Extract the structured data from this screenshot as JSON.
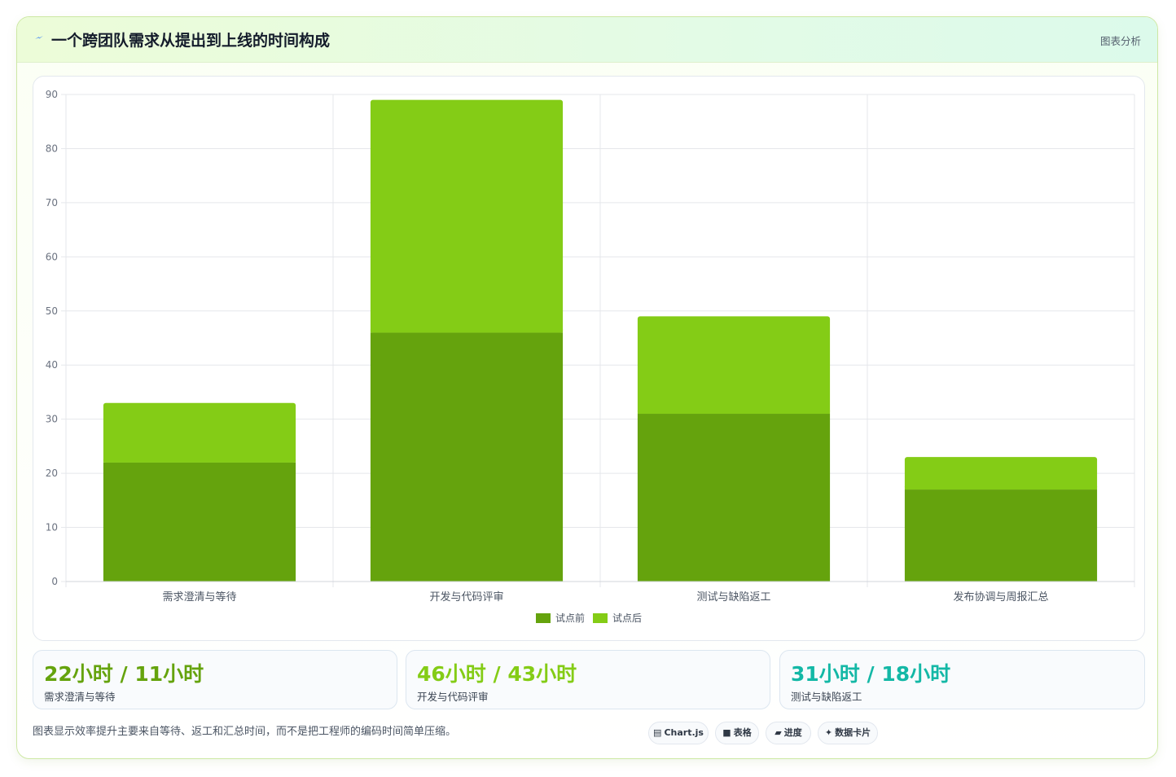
{
  "header": {
    "title": "一个跨团队需求从提出到上线的时间构成",
    "tag": "图表分析",
    "title_icon": "lightning-icon"
  },
  "colors": {
    "before": "#65a30d",
    "after": "#84cc16",
    "stat1": "#65a30d",
    "stat2": "#84cc16",
    "stat3": "#14b8a6",
    "grid": "#e5e7eb",
    "tick": "#6b7280"
  },
  "chart_data": {
    "type": "bar",
    "stacked": true,
    "categories": [
      "需求澄清与等待",
      "开发与代码评审",
      "测试与缺陷返工",
      "发布协调与周报汇总"
    ],
    "series": [
      {
        "name": "试点前",
        "values": [
          22,
          46,
          31,
          17
        ]
      },
      {
        "name": "试点后",
        "values": [
          11,
          43,
          18,
          6
        ]
      }
    ],
    "ylim": [
      0,
      90
    ],
    "yticks": [
      0,
      10,
      20,
      30,
      40,
      50,
      60,
      70,
      80,
      90
    ],
    "grid": true,
    "legend": "bottom"
  },
  "stats": [
    {
      "value": "22小时 / 11小时",
      "label": "需求澄清与等待"
    },
    {
      "value": "46小时 / 43小时",
      "label": "开发与代码评审"
    },
    {
      "value": "31小时 / 18小时",
      "label": "测试与缺陷返工"
    }
  ],
  "footnote": "图表显示效率提升主要来自等待、返工和汇总时间，而不是把工程师的编码时间简单压缩。",
  "pills": [
    {
      "icon": "chart-icon",
      "glyph": "▤",
      "label": "Chart.js"
    },
    {
      "icon": "table-icon",
      "glyph": "■",
      "label": "表格"
    },
    {
      "icon": "progress-icon",
      "glyph": "▰",
      "label": "进度"
    },
    {
      "icon": "sparkle-icon",
      "glyph": "✦",
      "label": "数据卡片"
    }
  ]
}
